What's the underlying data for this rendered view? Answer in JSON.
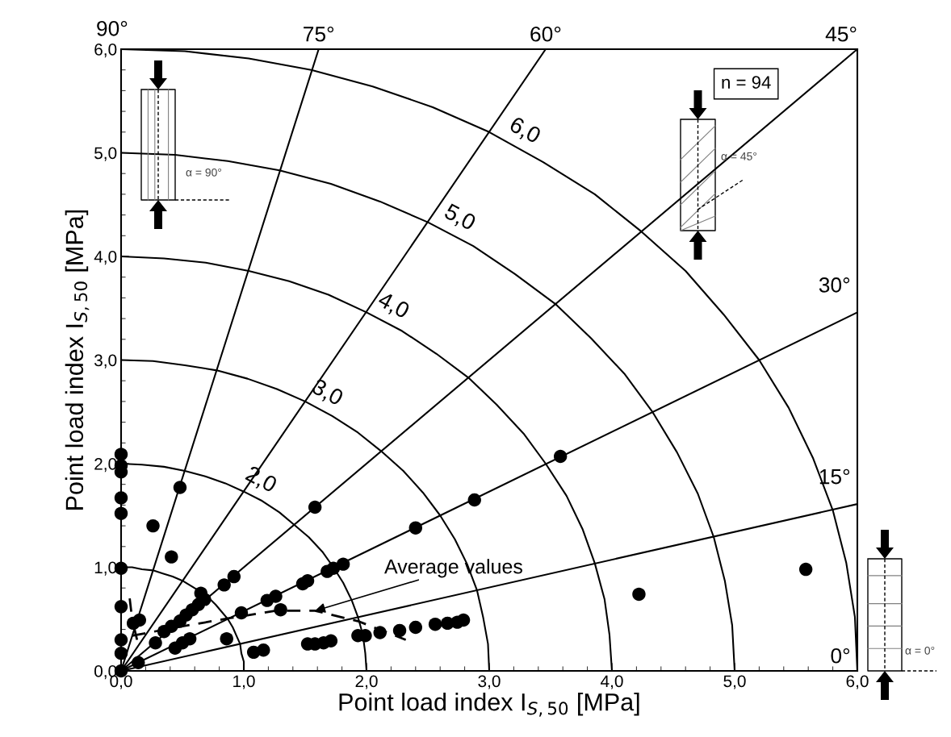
{
  "chart_data": {
    "type": "scatter",
    "xlabel": "Point load index I$_{S,50}$ [MPa]",
    "ylabel": "Point load index I$_{S,50}$ [MPa]",
    "xlim": [
      0,
      6
    ],
    "ylim": [
      0,
      6
    ],
    "xticks": [
      {
        "value": 0,
        "label": "0,0"
      },
      {
        "value": 1,
        "label": "1,0"
      },
      {
        "value": 2,
        "label": "2,0"
      },
      {
        "value": 3,
        "label": "3,0"
      },
      {
        "value": 4,
        "label": "4,0"
      },
      {
        "value": 5,
        "label": "5,0"
      },
      {
        "value": 6,
        "label": "6,0"
      }
    ],
    "yticks": [
      {
        "value": 0,
        "label": "0,0"
      },
      {
        "value": 1,
        "label": "1,0"
      },
      {
        "value": 2,
        "label": "2,0"
      },
      {
        "value": 3,
        "label": "3,0"
      },
      {
        "value": 4,
        "label": "4,0"
      },
      {
        "value": 5,
        "label": "5,0"
      },
      {
        "value": 6,
        "label": "6,0"
      }
    ],
    "marker": "circle",
    "series": [
      {
        "color": "#000000",
        "x": [
          0,
          0,
          0,
          0,
          0,
          0,
          0,
          0,
          0,
          0,
          0.14,
          0.48,
          0.26,
          0.41,
          0.1,
          0.15,
          0.65,
          0.84,
          0.92,
          0.28,
          0.35,
          0.41,
          0.48,
          0.53,
          0.58,
          0.63,
          0.68,
          0.44,
          0.5,
          0.56,
          0.98,
          1.19,
          1.26,
          1.3,
          1.48,
          1.52,
          1.68,
          1.73,
          1.81,
          1.58,
          0.86,
          1.08,
          1.16,
          1.52,
          1.58,
          1.65,
          1.71,
          1.93,
          1.99,
          2.11,
          2.27,
          2.4,
          2.56,
          2.66,
          2.74,
          2.79,
          2.4,
          2.88,
          3.58,
          4.22,
          5.58
        ],
        "values": [
          2.09,
          1.92,
          1.98,
          1.67,
          1.52,
          0.99,
          0.62,
          0.3,
          0.17,
          0.0,
          0.08,
          1.77,
          1.4,
          1.1,
          0.46,
          0.49,
          0.75,
          0.83,
          0.91,
          0.27,
          0.38,
          0.43,
          0.48,
          0.54,
          0.59,
          0.64,
          0.69,
          0.22,
          0.27,
          0.31,
          0.56,
          0.68,
          0.72,
          0.59,
          0.84,
          0.87,
          0.96,
          0.99,
          1.03,
          1.58,
          0.31,
          0.18,
          0.2,
          0.26,
          0.26,
          0.27,
          0.29,
          0.34,
          0.34,
          0.37,
          0.39,
          0.42,
          0.45,
          0.46,
          0.47,
          0.49,
          1.38,
          1.65,
          2.07,
          0.74,
          0.98
        ]
      },
      {
        "type": "line",
        "color": "#000000",
        "line_style": "dashed",
        "marker": "none",
        "x": [
          0.09,
          0.5,
          0.89,
          1.26,
          1.58,
          1.93,
          2.32
        ],
        "values": [
          0.34,
          0.43,
          0.51,
          0.58,
          0.58,
          0.48,
          0.3
        ]
      },
      {
        "type": "line",
        "color": "#000000",
        "line_style": "dotted",
        "marker": "none",
        "x": [
          0.07,
          0.09,
          0.13
        ],
        "values": [
          0.7,
          0.5,
          0.3
        ]
      },
      {
        "type": "line",
        "color": "#000000",
        "line_style": "solid",
        "marker": "none",
        "x": [
          1,
          1,
          0.98,
          0.97,
          0.94,
          0.91,
          0.87,
          0.82,
          0.77,
          0.71,
          0.64,
          0.57,
          0.5,
          0.42,
          0.34,
          0.26,
          0.17,
          0.09,
          0
        ],
        "values": [
          0,
          0.09,
          0.17,
          0.26,
          0.34,
          0.42,
          0.5,
          0.57,
          0.64,
          0.71,
          0.77,
          0.82,
          0.87,
          0.91,
          0.94,
          0.97,
          0.98,
          1,
          1
        ]
      },
      {
        "type": "line",
        "color": "#000000",
        "line_style": "solid",
        "marker": "none",
        "x": [
          2,
          1.99,
          1.97,
          1.93,
          1.88,
          1.81,
          1.73,
          1.64,
          1.53,
          1.41,
          1.29,
          1.15,
          1,
          0.85,
          0.68,
          0.52,
          0.35,
          0.17,
          0
        ],
        "values": [
          0,
          0.17,
          0.35,
          0.52,
          0.68,
          0.85,
          1,
          1.15,
          1.29,
          1.41,
          1.53,
          1.64,
          1.73,
          1.81,
          1.88,
          1.93,
          1.97,
          1.99,
          2
        ]
      },
      {
        "type": "line",
        "color": "#000000",
        "line_style": "solid",
        "marker": "none",
        "x": [
          3,
          2.99,
          2.95,
          2.9,
          2.82,
          2.72,
          2.6,
          2.46,
          2.3,
          2.12,
          1.93,
          1.72,
          1.5,
          1.27,
          1.03,
          0.78,
          0.52,
          0.26,
          0
        ],
        "values": [
          0,
          0.26,
          0.52,
          0.78,
          1.03,
          1.27,
          1.5,
          1.72,
          1.93,
          2.12,
          2.3,
          2.46,
          2.6,
          2.72,
          2.82,
          2.9,
          2.95,
          2.99,
          3
        ]
      },
      {
        "type": "line",
        "color": "#000000",
        "line_style": "solid",
        "marker": "none",
        "x": [
          4,
          3.98,
          3.94,
          3.86,
          3.76,
          3.63,
          3.46,
          3.28,
          3.06,
          2.83,
          2.57,
          2.29,
          2,
          1.69,
          1.37,
          1.04,
          0.69,
          0.35,
          0
        ],
        "values": [
          0,
          0.35,
          0.69,
          1.04,
          1.37,
          1.69,
          2,
          2.29,
          2.57,
          2.83,
          3.06,
          3.28,
          3.46,
          3.63,
          3.76,
          3.86,
          3.94,
          3.98,
          4
        ]
      },
      {
        "type": "line",
        "color": "#000000",
        "line_style": "solid",
        "marker": "none",
        "x": [
          5,
          4.98,
          4.92,
          4.83,
          4.7,
          4.53,
          4.33,
          4.1,
          3.83,
          3.54,
          3.21,
          2.87,
          2.5,
          2.11,
          1.71,
          1.29,
          0.87,
          0.44,
          0
        ],
        "values": [
          0,
          0.44,
          0.87,
          1.29,
          1.71,
          2.11,
          2.5,
          2.87,
          3.21,
          3.54,
          3.83,
          4.1,
          4.33,
          4.53,
          4.7,
          4.83,
          4.92,
          4.98,
          5
        ]
      },
      {
        "type": "line",
        "color": "#000000",
        "line_style": "solid",
        "marker": "none",
        "x": [
          6,
          5.98,
          5.91,
          5.8,
          5.64,
          5.44,
          5.2,
          4.91,
          4.6,
          4.24,
          3.86,
          3.44,
          3,
          2.54,
          2.05,
          1.55,
          1.04,
          0.52,
          0
        ],
        "values": [
          0,
          0.52,
          1.04,
          1.55,
          2.05,
          2.54,
          3,
          3.44,
          3.86,
          4.24,
          4.6,
          4.91,
          5.2,
          5.44,
          5.64,
          5.8,
          5.91,
          5.98,
          6
        ]
      },
      {
        "type": "line",
        "color": "#000000",
        "line_style": "solid",
        "marker": "none",
        "x": [
          0,
          6
        ],
        "values": [
          0,
          1.61
        ]
      },
      {
        "type": "line",
        "color": "#000000",
        "line_style": "solid",
        "marker": "none",
        "x": [
          0,
          6
        ],
        "values": [
          0,
          3.46
        ]
      },
      {
        "type": "line",
        "color": "#000000",
        "line_style": "solid",
        "marker": "none",
        "x": [
          0,
          6
        ],
        "values": [
          0,
          6
        ]
      },
      {
        "type": "line",
        "color": "#000000",
        "line_style": "solid",
        "marker": "none",
        "x": [
          0,
          3.46
        ],
        "values": [
          0,
          6
        ]
      },
      {
        "type": "line",
        "color": "#000000",
        "line_style": "solid",
        "marker": "none",
        "x": [
          0,
          1.61
        ],
        "values": [
          0,
          6
        ]
      }
    ],
    "annotations": [
      "n = 94",
      "α = 90°",
      "α = 45°",
      "α = 0°",
      {
        "text": "Average values",
        "x": 1.58,
        "y": 0.58
      },
      {
        "text": "2,0",
        "x": 1.07,
        "y": 1.69
      },
      {
        "text": "3,0",
        "x": 1.61,
        "y": 2.53
      },
      {
        "text": "4,0",
        "x": 2.15,
        "y": 3.37
      },
      {
        "text": "5,0",
        "x": 2.69,
        "y": 4.22
      },
      {
        "text": "6,0",
        "x": 3.22,
        "y": 5.06
      },
      {
        "text": "90°",
        "x": 0,
        "y": 6
      },
      {
        "text": "75°",
        "x": 1.61,
        "y": 6
      },
      {
        "text": "60°",
        "x": 3.46,
        "y": 6
      },
      {
        "text": "45°",
        "x": 6,
        "y": 6
      },
      {
        "text": "30°",
        "x": 6,
        "y": 3.46
      },
      {
        "text": "15°",
        "x": 6,
        "y": 1.61
      },
      {
        "text": "0°",
        "x": 6,
        "y": 0
      }
    ]
  }
}
